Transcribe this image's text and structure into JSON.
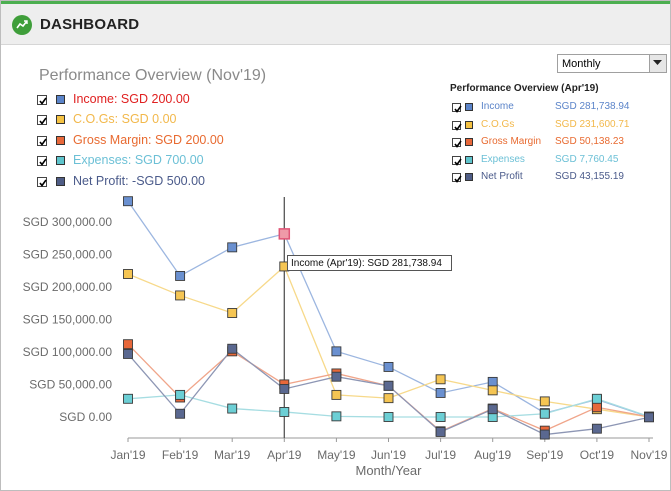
{
  "header": {
    "title": "DASHBOARD",
    "logo_icon": "dashboard-logo-icon"
  },
  "period_select": {
    "value": "Monthly"
  },
  "overview": {
    "title": "Performance Overview (Nov'19)",
    "items": [
      {
        "label": "Income: SGD 200.00",
        "color": "#5b84c9",
        "text_color": "#e02020"
      },
      {
        "label": "C.O.Gs: SGD 0.00",
        "color": "#f5c242",
        "text_color": "#f2b84b"
      },
      {
        "label": "Gross Margin: SGD 200.00",
        "color": "#e8683a",
        "text_color": "#e86a30"
      },
      {
        "label": "Expenses: SGD 700.00",
        "color": "#5ec4cc",
        "text_color": "#6cc0d6"
      },
      {
        "label": "Net Profit: -SGD 500.00",
        "color": "#4f5d86",
        "text_color": "#4a5a8a"
      }
    ]
  },
  "overview_apr": {
    "title": "Performance Overview (Apr'19)",
    "items": [
      {
        "name": "Income",
        "value": "SGD 281,738.94",
        "color": "#5b84c9",
        "text_color": "#5b84c9"
      },
      {
        "name": "C.O.Gs",
        "value": "SGD 231,600.71",
        "color": "#f5c242",
        "text_color": "#f2b84b"
      },
      {
        "name": "Gross Margin",
        "value": "SGD 50,138.23",
        "color": "#e8683a",
        "text_color": "#e86a30"
      },
      {
        "name": "Expenses",
        "value": "SGD 7,760.45",
        "color": "#5ec4cc",
        "text_color": "#6cc0d6"
      },
      {
        "name": "Net Profit",
        "value": "SGD 43,155.19",
        "color": "#4f5d86",
        "text_color": "#4a5a8a"
      }
    ]
  },
  "chart_data": {
    "type": "line",
    "categories": [
      "Jan'19",
      "Feb'19",
      "Mar'19",
      "Apr'19",
      "May'19",
      "Jun'19",
      "Jul'19",
      "Aug'19",
      "Sep'19",
      "Oct'19",
      "Nov'19"
    ],
    "xlabel": "Month/Year",
    "ylabel": "",
    "yticks": [
      0,
      50000,
      100000,
      150000,
      200000,
      250000,
      300000
    ],
    "ytick_labels": [
      "SGD 0.00",
      "SGD 50,000.00",
      "SGD 100,000.00",
      "SGD 150,000.00",
      "SGD 200,000.00",
      "SGD 250,000.00",
      "SGD 300,000.00"
    ],
    "ylim": [
      -30000,
      340000
    ],
    "series": [
      {
        "name": "Income",
        "line_color": "#9cb6e0",
        "marker_color": "#6a90d0",
        "values": [
          332000,
          217000,
          261000,
          281739,
          101000,
          77000,
          37000,
          54000,
          6000,
          27000,
          200
        ]
      },
      {
        "name": "C.O.Gs",
        "line_color": "#f7d98a",
        "marker_color": "#f5c553",
        "values": [
          220000,
          187000,
          160000,
          231601,
          34000,
          29000,
          58000,
          41000,
          24000,
          12000,
          0
        ]
      },
      {
        "name": "Gross Margin",
        "line_color": "#f0a58a",
        "marker_color": "#e8683a",
        "values": [
          112000,
          30000,
          101000,
          50138,
          67000,
          48000,
          -22000,
          13000,
          -21000,
          15000,
          200
        ]
      },
      {
        "name": "Expenses",
        "line_color": "#a6dde2",
        "marker_color": "#6ccfd5",
        "values": [
          28000,
          34000,
          13000,
          7760,
          1000,
          0,
          0,
          0,
          5000,
          28000,
          700
        ]
      },
      {
        "name": "Net Profit",
        "line_color": "#8d96b4",
        "marker_color": "#5a6890",
        "values": [
          97000,
          5000,
          105000,
          43155,
          62000,
          48000,
          -23000,
          12000,
          -27000,
          -18000,
          -500
        ]
      }
    ],
    "highlight": {
      "category": "Apr'19",
      "series": "Income"
    },
    "tooltip": "Income (Apr'19): SGD 281,738.94",
    "grid": false,
    "legend": "top"
  }
}
